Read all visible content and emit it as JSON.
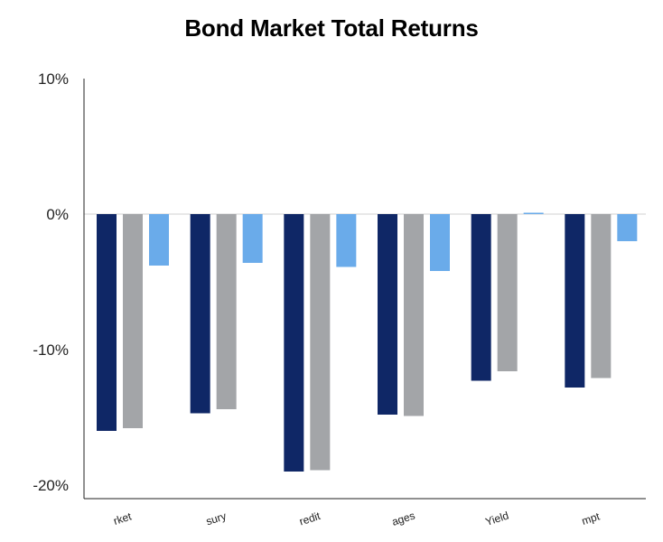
{
  "chart_data": {
    "type": "bar",
    "title": "Bond Market Total Returns",
    "xlabel": "",
    "ylabel": "",
    "categories": [
      "rket",
      "sury",
      "redit",
      "ages",
      "Yield",
      "mpt"
    ],
    "series": [
      {
        "values": [
          -16.0,
          -14.7,
          -19.0,
          -14.8,
          -12.3,
          -12.8
        ]
      },
      {
        "values": [
          -15.8,
          -14.4,
          -18.9,
          -14.9,
          -11.6,
          -12.1
        ]
      },
      {
        "values": [
          -3.8,
          -3.6,
          -3.9,
          -4.2,
          0.1,
          -2.0
        ]
      }
    ],
    "ylim": [
      -20,
      10
    ],
    "yticks": [
      10,
      0,
      -10,
      -20
    ],
    "ytick_labels": [
      "10%",
      "0%",
      "-10%",
      "-20%"
    ],
    "colors": [
      "#0f2766",
      "#a3a5a8",
      "#6aabea"
    ],
    "grid": false,
    "legend": "none"
  }
}
